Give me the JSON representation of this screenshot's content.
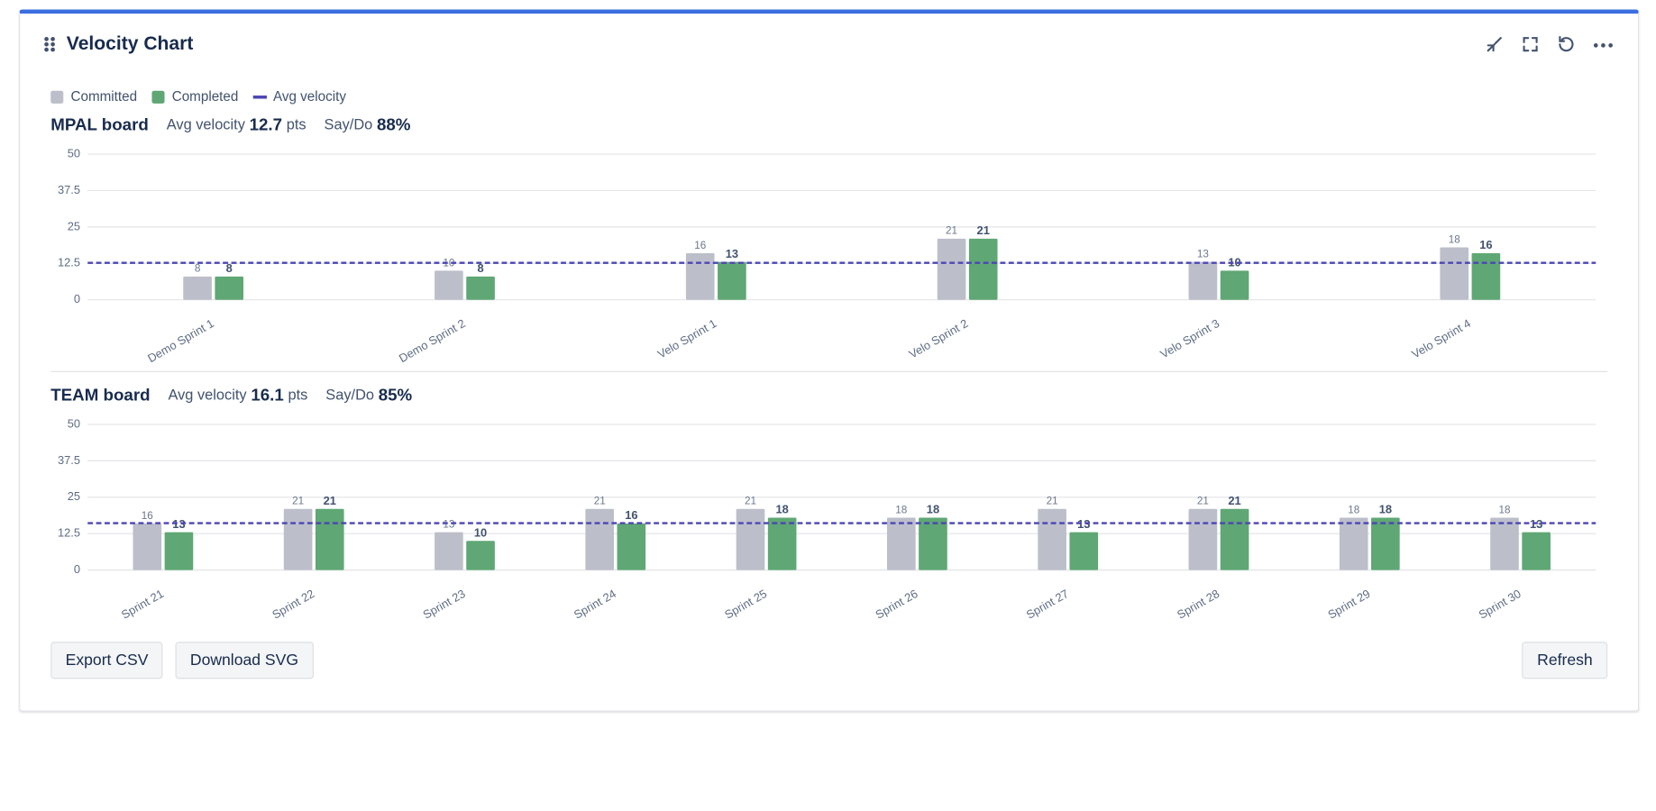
{
  "header": {
    "title": "Velocity Chart"
  },
  "chart_data": [
    {
      "type": "bar",
      "title": "MPAL board",
      "categories": [
        "Demo Sprint 1",
        "Demo Sprint 2",
        "Velo Sprint 1",
        "Velo Sprint 2",
        "Velo Sprint 3",
        "Velo Sprint 4"
      ],
      "series": [
        {
          "name": "Committed",
          "color": "#bcbfca",
          "values": [
            8,
            10,
            16,
            21,
            13,
            18
          ]
        },
        {
          "name": "Completed",
          "color": "#5fa774",
          "values": [
            8,
            8,
            13,
            21,
            10,
            16
          ]
        }
      ],
      "avg_line": {
        "name": "Avg velocity",
        "color": "#4c45b5",
        "value": 12.7,
        "unit": "pts"
      },
      "say_do": {
        "name": "Say/Do",
        "value": 88,
        "label": "88%"
      },
      "ylim": [
        0,
        50
      ],
      "yticks": [
        0,
        12.5,
        25,
        37.5,
        50
      ],
      "grid": true
    },
    {
      "type": "bar",
      "title": "TEAM board",
      "categories": [
        "Sprint 21",
        "Sprint 22",
        "Sprint 23",
        "Sprint 24",
        "Sprint 25",
        "Sprint 26",
        "Sprint 27",
        "Sprint 28",
        "Sprint 29",
        "Sprint 30"
      ],
      "series": [
        {
          "name": "Committed",
          "color": "#bcbfca",
          "values": [
            16,
            21,
            13,
            21,
            21,
            18,
            21,
            21,
            18,
            18
          ]
        },
        {
          "name": "Completed",
          "color": "#5fa774",
          "values": [
            13,
            21,
            10,
            16,
            18,
            18,
            13,
            21,
            18,
            13
          ]
        }
      ],
      "avg_line": {
        "name": "Avg velocity",
        "color": "#4c45b5",
        "value": 16.1,
        "unit": "pts"
      },
      "say_do": {
        "name": "Say/Do",
        "value": 85,
        "label": "85%"
      },
      "ylim": [
        0,
        50
      ],
      "yticks": [
        0,
        12.5,
        25,
        37.5,
        50
      ],
      "grid": true
    }
  ],
  "buttons": [
    "Export CSV",
    "Download SVG",
    "Refresh"
  ]
}
